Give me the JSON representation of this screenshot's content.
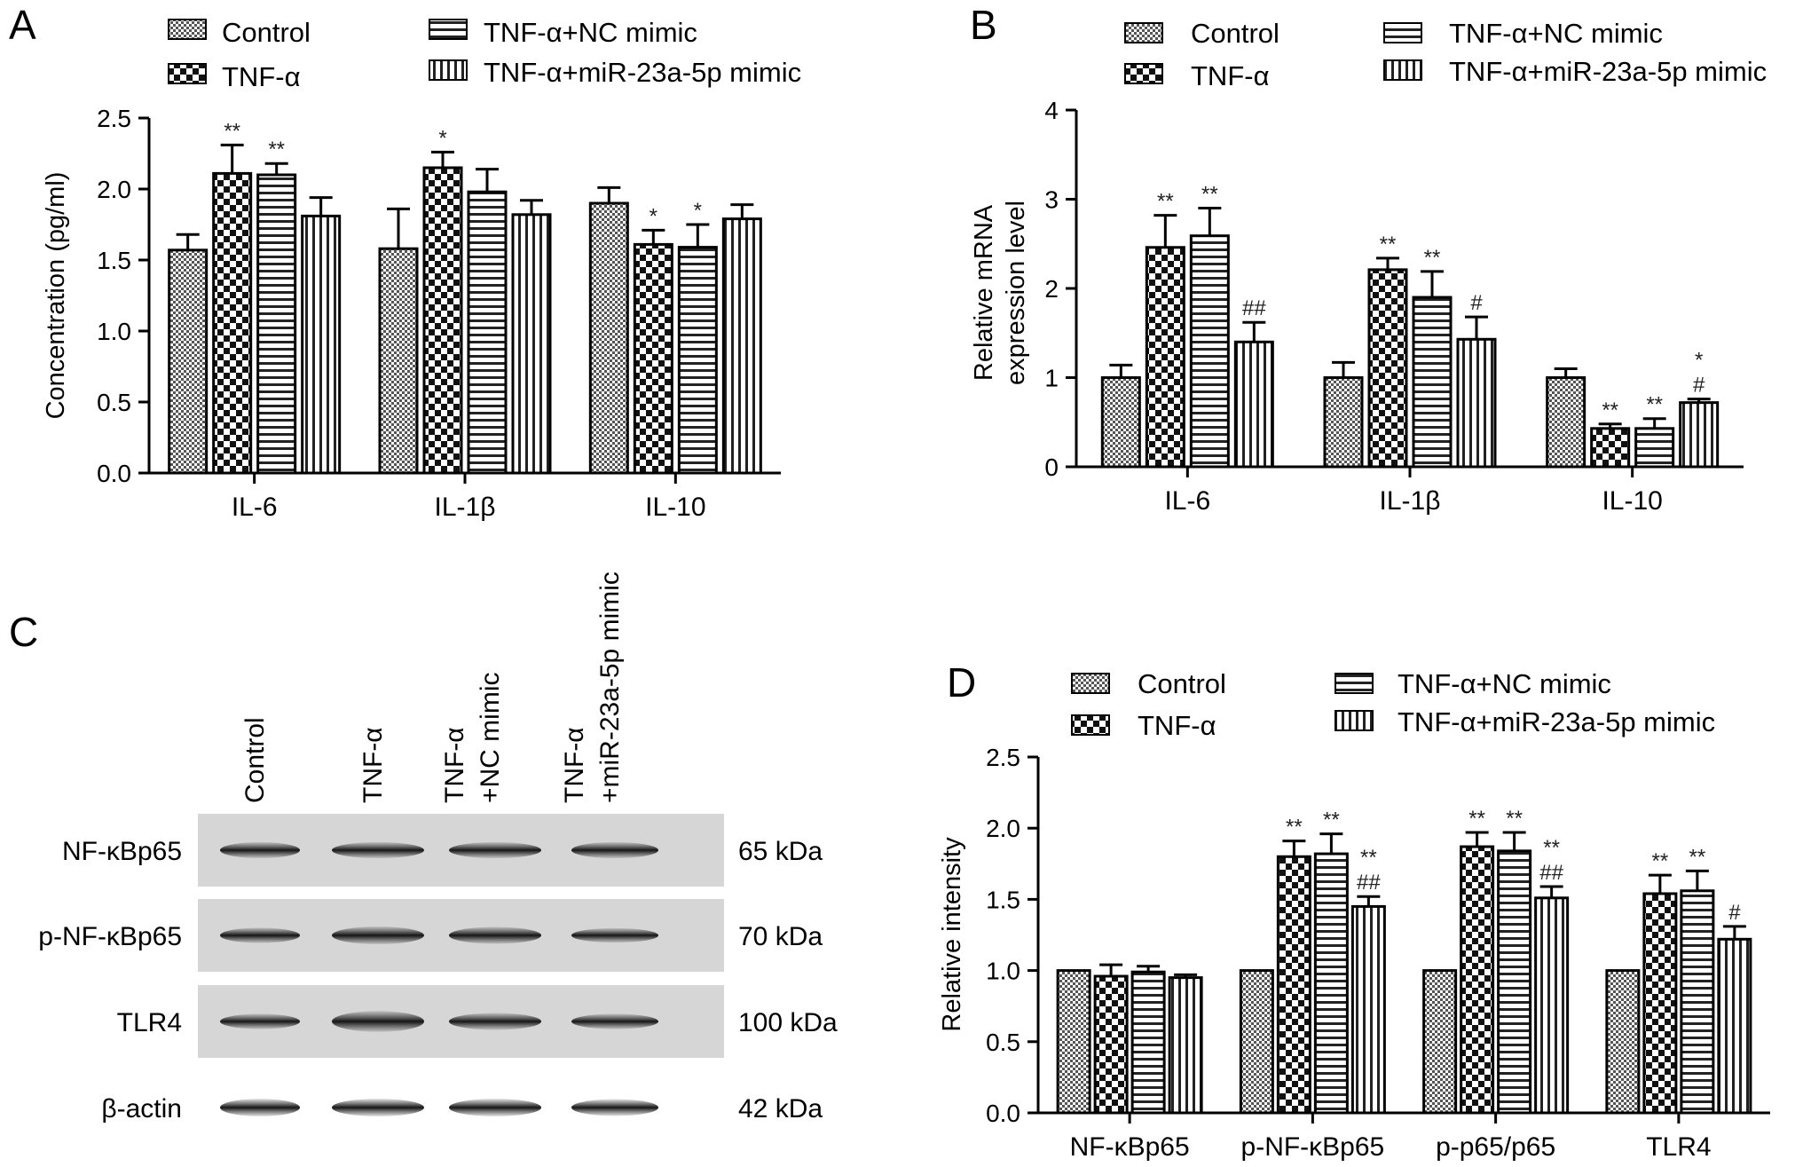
{
  "legend": {
    "control": "Control",
    "tnf": "TNF-α",
    "nc": "TNF-α+NC mimic",
    "mir": "TNF-α+miR-23a-5p mimic"
  },
  "chart_data": [
    {
      "panel": "A",
      "type": "bar",
      "ylabel": "Concentration (pg/ml)",
      "ylim": [
        0,
        2.5
      ],
      "yticks": [
        "0.0",
        "0.5",
        "1.0",
        "1.5",
        "2.0",
        "2.5"
      ],
      "categories": [
        "IL-6",
        "IL-1β",
        "IL-10"
      ],
      "series": [
        {
          "name": "Control",
          "values": [
            1.57,
            1.58,
            1.9
          ],
          "errors": [
            0.11,
            0.28,
            0.11
          ],
          "marks": [
            "",
            "",
            ""
          ]
        },
        {
          "name": "TNF-α",
          "values": [
            2.11,
            2.15,
            1.61
          ],
          "errors": [
            0.2,
            0.11,
            0.1
          ],
          "marks": [
            "**",
            "*",
            "*"
          ]
        },
        {
          "name": "TNF-α+NC mimic",
          "values": [
            2.1,
            1.98,
            1.59
          ],
          "errors": [
            0.08,
            0.16,
            0.16
          ],
          "marks": [
            "**",
            "",
            "*"
          ]
        },
        {
          "name": "TNF-α+miR-23a-5p mimic",
          "values": [
            1.81,
            1.82,
            1.79
          ],
          "errors": [
            0.13,
            0.1,
            0.1
          ],
          "marks": [
            "",
            "",
            ""
          ]
        }
      ]
    },
    {
      "panel": "B",
      "type": "bar",
      "ylabel": "Relative mRNA expression level",
      "ylabel_lines": [
        "Relative mRNA",
        "expression level"
      ],
      "ylim": [
        0,
        4
      ],
      "yticks": [
        "0",
        "1",
        "2",
        "3",
        "4"
      ],
      "categories": [
        "IL-6",
        "IL-1β",
        "IL-10"
      ],
      "series": [
        {
          "name": "Control",
          "values": [
            1.0,
            1.0,
            1.0
          ],
          "errors": [
            0.14,
            0.17,
            0.1
          ],
          "marks": [
            "",
            "",
            ""
          ]
        },
        {
          "name": "TNF-α",
          "values": [
            2.46,
            2.21,
            0.43
          ],
          "errors": [
            0.36,
            0.13,
            0.05
          ],
          "marks": [
            "**",
            "**",
            "**"
          ]
        },
        {
          "name": "TNF-α+NC mimic",
          "values": [
            2.59,
            1.9,
            0.43
          ],
          "errors": [
            0.31,
            0.29,
            0.11
          ],
          "marks": [
            "**",
            "**",
            "**"
          ]
        },
        {
          "name": "TNF-α+miR-23a-5p mimic",
          "values": [
            1.4,
            1.43,
            0.72
          ],
          "errors": [
            0.22,
            0.25,
            0.04
          ],
          "marks": [
            "##",
            "#",
            "*|#"
          ]
        }
      ]
    },
    {
      "panel": "D",
      "type": "bar",
      "ylabel": "Relative intensity",
      "ylim": [
        0,
        2.5
      ],
      "yticks": [
        "0.0",
        "0.5",
        "1.0",
        "1.5",
        "2.0",
        "2.5"
      ],
      "categories": [
        "NF-κBp65",
        "p-NF-κBp65",
        "p-p65/p65",
        "TLR4"
      ],
      "series": [
        {
          "name": "Control",
          "values": [
            1.0,
            1.0,
            1.0,
            1.0
          ],
          "errors": [
            0,
            0,
            0,
            0
          ],
          "marks": [
            "",
            "",
            "",
            ""
          ]
        },
        {
          "name": "TNF-α",
          "values": [
            0.96,
            1.8,
            1.87,
            1.54
          ],
          "errors": [
            0.08,
            0.11,
            0.1,
            0.13
          ],
          "marks": [
            "",
            "**",
            "**",
            "**"
          ]
        },
        {
          "name": "TNF-α+NC mimic",
          "values": [
            0.99,
            1.82,
            1.84,
            1.56
          ],
          "errors": [
            0.04,
            0.14,
            0.13,
            0.14
          ],
          "marks": [
            "",
            "**",
            "**",
            "**"
          ]
        },
        {
          "name": "TNF-α+miR-23a-5p mimic",
          "values": [
            0.95,
            1.45,
            1.51,
            1.22
          ],
          "errors": [
            0.02,
            0.07,
            0.08,
            0.09
          ],
          "marks": [
            "",
            "**|##",
            "**|##",
            "#"
          ]
        }
      ]
    }
  ],
  "blot": {
    "panel": "C",
    "lanes": [
      [
        "Control"
      ],
      [
        "TNF-α"
      ],
      [
        "TNF-α",
        "+NC mimic"
      ],
      [
        "TNF-α",
        "+miR-23a-5p mimic"
      ]
    ],
    "rows": [
      {
        "label": "NF-κBp65",
        "kda": "65 kDa"
      },
      {
        "label": "p-NF-κBp65",
        "kda": "70 kDa"
      },
      {
        "label": "TLR4",
        "kda": "100 kDa"
      },
      {
        "label": "β-actin",
        "kda": "42 kDa"
      }
    ]
  },
  "panels": {
    "a": "A",
    "b": "B",
    "c": "C",
    "d": "D"
  }
}
